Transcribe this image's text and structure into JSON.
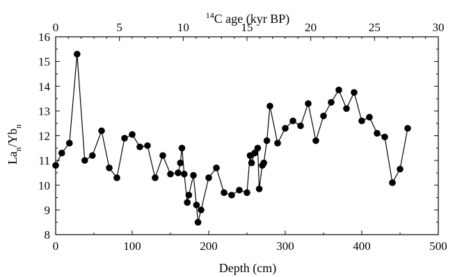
{
  "chart_data": {
    "type": "line",
    "xlabel": "Depth (cm)",
    "x2label": {
      "prefix": "14",
      "text": "C age (kyr BP)"
    },
    "ylabel": {
      "p1": "La",
      "sub1": "n",
      "p2": "/Yb",
      "sub2": "n"
    },
    "xlim": [
      0,
      500
    ],
    "x2lim": [
      0,
      30
    ],
    "ylim": [
      8,
      16
    ],
    "xticks": [
      0,
      100,
      200,
      300,
      400,
      500
    ],
    "x2ticks": [
      0,
      5,
      10,
      15,
      20,
      25,
      30
    ],
    "yticks": [
      8,
      9,
      10,
      11,
      12,
      13,
      14,
      15,
      16
    ],
    "series": [
      {
        "color": "#000000",
        "marker": "circle-filled",
        "x": [
          0,
          8,
          18,
          28,
          38,
          48,
          60,
          70,
          80,
          90,
          100,
          110,
          120,
          130,
          140,
          150,
          160,
          163,
          165,
          168,
          172,
          174,
          180,
          184,
          186,
          190,
          200,
          210,
          220,
          230,
          240,
          250,
          254,
          256,
          260,
          264,
          266,
          270,
          272,
          276,
          280,
          290,
          300,
          310,
          320,
          330,
          340,
          350,
          360,
          370,
          380,
          390,
          400,
          410,
          420,
          430,
          440,
          450,
          460
        ],
        "y": [
          10.8,
          11.3,
          11.7,
          15.3,
          11.0,
          11.2,
          12.2,
          10.7,
          10.3,
          11.9,
          12.05,
          11.55,
          11.6,
          10.3,
          11.2,
          10.45,
          10.5,
          10.9,
          11.5,
          10.45,
          9.3,
          9.6,
          10.4,
          9.2,
          8.5,
          9.0,
          10.3,
          10.7,
          9.7,
          9.6,
          9.8,
          9.7,
          11.2,
          10.9,
          11.3,
          11.5,
          9.85,
          10.8,
          10.9,
          11.8,
          13.2,
          11.7,
          12.3,
          12.6,
          12.4,
          13.3,
          11.8,
          12.8,
          13.35,
          13.85,
          13.1,
          13.75,
          12.6,
          12.75,
          12.1,
          11.95,
          10.1,
          10.65,
          12.3
        ]
      }
    ]
  }
}
